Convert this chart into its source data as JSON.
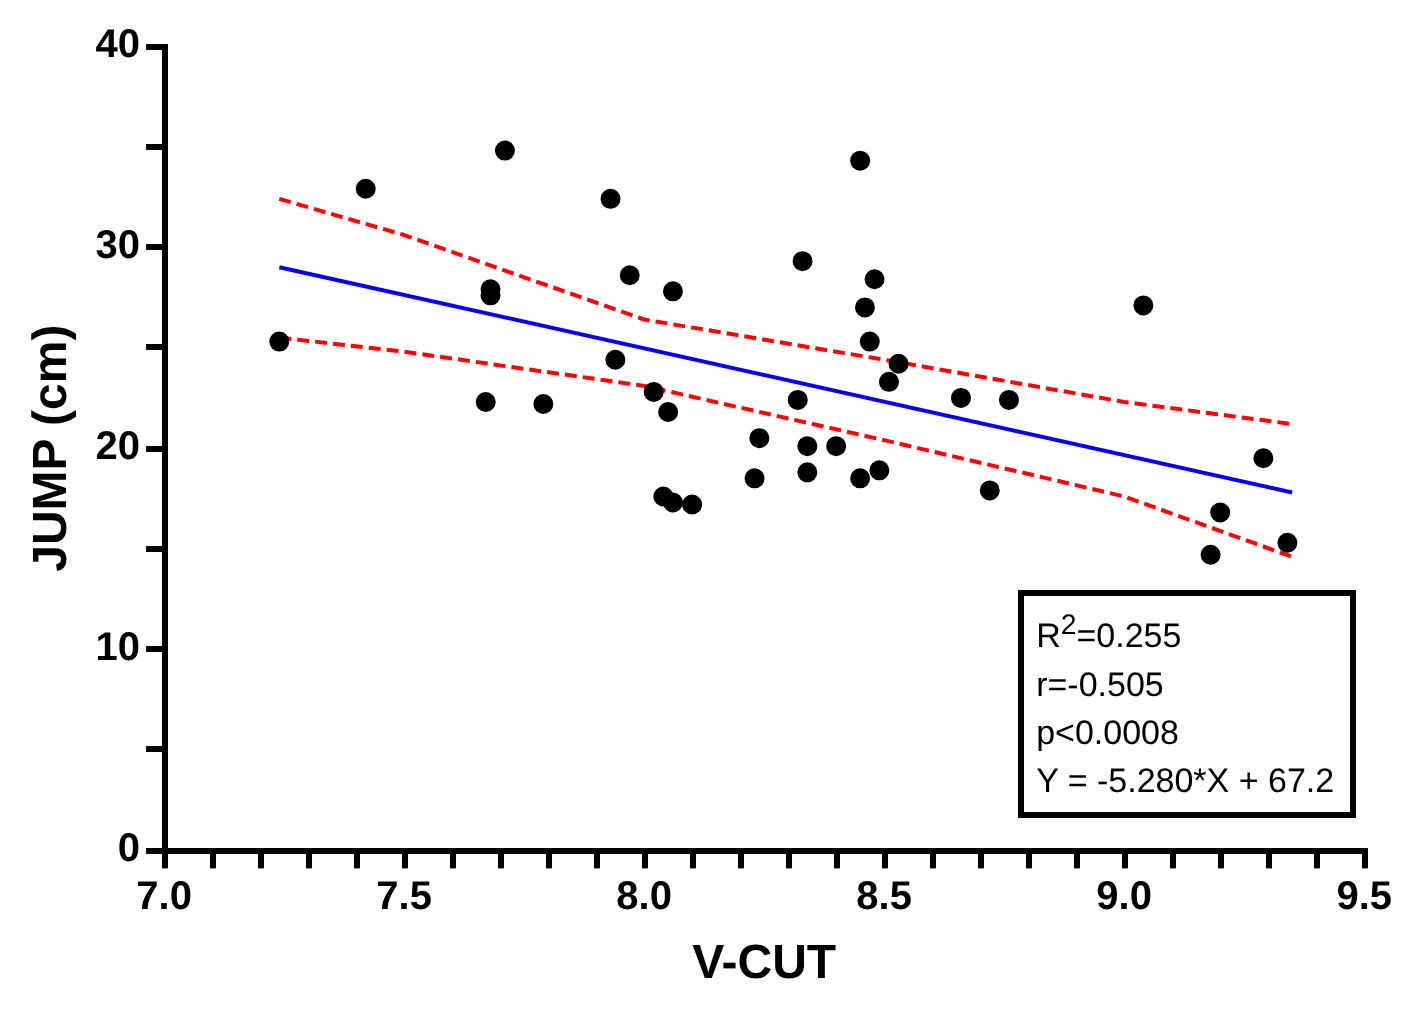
{
  "chart_data": {
    "type": "scatter",
    "xlabel": "V-CUT",
    "ylabel": "JUMP (cm)",
    "xlim": [
      7,
      9.5
    ],
    "ylim": [
      0,
      40
    ],
    "xticks": [
      {
        "value": 7,
        "label": "7.0"
      },
      {
        "value": 7.1,
        "label": null
      },
      {
        "value": 7.2,
        "label": null
      },
      {
        "value": 7.3,
        "label": null
      },
      {
        "value": 7.4,
        "label": null
      },
      {
        "value": 7.5,
        "label": "7.5"
      },
      {
        "value": 7.6,
        "label": null
      },
      {
        "value": 7.7,
        "label": null
      },
      {
        "value": 7.8,
        "label": null
      },
      {
        "value": 7.9,
        "label": null
      },
      {
        "value": 8,
        "label": "8.0"
      },
      {
        "value": 8.1,
        "label": null
      },
      {
        "value": 8.2,
        "label": null
      },
      {
        "value": 8.3,
        "label": null
      },
      {
        "value": 8.4,
        "label": null
      },
      {
        "value": 8.5,
        "label": "8.5"
      },
      {
        "value": 8.6,
        "label": null
      },
      {
        "value": 8.7,
        "label": null
      },
      {
        "value": 8.8,
        "label": null
      },
      {
        "value": 8.9,
        "label": null
      },
      {
        "value": 9,
        "label": "9.0"
      },
      {
        "value": 9.1,
        "label": null
      },
      {
        "value": 9.2,
        "label": null
      },
      {
        "value": 9.3,
        "label": null
      },
      {
        "value": 9.4,
        "label": null
      },
      {
        "value": 9.5,
        "label": "9.5"
      }
    ],
    "yticks": [
      0,
      {
        "value": 5,
        "label": null
      },
      10,
      {
        "value": 15,
        "label": null
      },
      20,
      {
        "value": 25,
        "label": null
      },
      30,
      {
        "value": 35,
        "label": null
      },
      40
    ],
    "grid": false,
    "legend": false,
    "marker": "circle",
    "series": [
      {
        "type": "scatter",
        "color": "#000000",
        "x": [
          7.24,
          7.42,
          7.71,
          7.93,
          7.68,
          7.68,
          7.97,
          8.06,
          7.94,
          7.67,
          7.79,
          8.02,
          8.05,
          8.04,
          8.06,
          8.1,
          8.45,
          8.33,
          8.48,
          8.46,
          8.47,
          8.53,
          8.51,
          8.66,
          8.76,
          8.32,
          8.24,
          8.34,
          8.4,
          8.23,
          8.34,
          8.45,
          8.49,
          8.72,
          9.04,
          9.29,
          9.2,
          9.18,
          9.34
        ],
        "values": [
          25.3,
          32.9,
          34.8,
          32.4,
          27.9,
          27.6,
          28.6,
          27.8,
          24.4,
          22.3,
          22.2,
          22.8,
          21.8,
          17.6,
          17.3,
          17.2,
          34.3,
          29.3,
          28.4,
          27.0,
          25.3,
          24.2,
          23.3,
          22.5,
          22.4,
          22.4,
          20.5,
          20.1,
          20.1,
          18.5,
          18.8,
          18.5,
          18.9,
          17.9,
          27.1,
          19.5,
          16.8,
          14.7,
          15.3
        ]
      },
      {
        "type": "line",
        "color": "#0000ff",
        "line_style": "solid",
        "marker": "none",
        "x": [
          7.24,
          9.35
        ],
        "values": [
          29.0,
          17.8
        ]
      },
      {
        "type": "line",
        "color": "#ff0000",
        "line_style": "dashed",
        "marker": "none",
        "x": [
          7.24,
          7.5,
          8.0,
          8.5,
          9.0,
          9.35
        ],
        "values": [
          32.4,
          30.6,
          26.4,
          24.4,
          22.3,
          21.2
        ]
      },
      {
        "type": "line",
        "color": "#ff0000",
        "line_style": "dashed",
        "marker": "none",
        "x": [
          7.24,
          7.5,
          8.0,
          8.5,
          9.0,
          9.35
        ],
        "values": [
          25.5,
          24.8,
          23.1,
          20.4,
          17.6,
          14.6
        ]
      }
    ],
    "annotations": [
      "R$^{2}$=0.255\nr=-0.505\np<0.0008\nY = -5.280*X + 67.2"
    ]
  }
}
